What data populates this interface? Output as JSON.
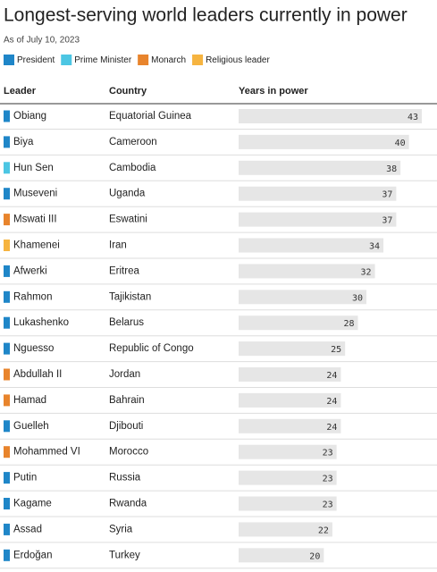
{
  "chart_data": {
    "type": "bar",
    "title": "Longest-serving world leaders currently in power",
    "subtitle": "As of July 10, 2023",
    "legend": [
      {
        "name": "President",
        "color": "#1f86c8"
      },
      {
        "name": "Prime Minister",
        "color": "#4cc6e3"
      },
      {
        "name": "Monarch",
        "color": "#e8842c"
      },
      {
        "name": "Religious leader",
        "color": "#f6b440"
      }
    ],
    "columns": [
      "Leader",
      "Country",
      "Years in power"
    ],
    "categories": [
      "Obiang",
      "Biya",
      "Hun Sen",
      "Museveni",
      "Mswati III",
      "Khamenei",
      "Afwerki",
      "Rahmon",
      "Lukashenko",
      "Nguesso",
      "Abdullah II",
      "Hamad",
      "Guelleh",
      "Mohammed VI",
      "Putin",
      "Kagame",
      "Assad",
      "Erdoğan"
    ],
    "countries": [
      "Equatorial Guinea",
      "Cameroon",
      "Cambodia",
      "Uganda",
      "Eswatini",
      "Iran",
      "Eritrea",
      "Tajikistan",
      "Belarus",
      "Republic of Congo",
      "Jordan",
      "Bahrain",
      "Djibouti",
      "Morocco",
      "Russia",
      "Rwanda",
      "Syria",
      "Turkey"
    ],
    "colors": [
      "#1f86c8",
      "#1f86c8",
      "#4cc6e3",
      "#1f86c8",
      "#e8842c",
      "#f6b440",
      "#1f86c8",
      "#1f86c8",
      "#1f86c8",
      "#1f86c8",
      "#e8842c",
      "#e8842c",
      "#1f86c8",
      "#e8842c",
      "#1f86c8",
      "#1f86c8",
      "#1f86c8",
      "#1f86c8"
    ],
    "values": [
      43,
      40,
      38,
      37,
      37,
      34,
      32,
      30,
      28,
      25,
      24,
      24,
      24,
      23,
      23,
      23,
      22,
      20
    ],
    "bar_color": "#e6e6e6"
  }
}
